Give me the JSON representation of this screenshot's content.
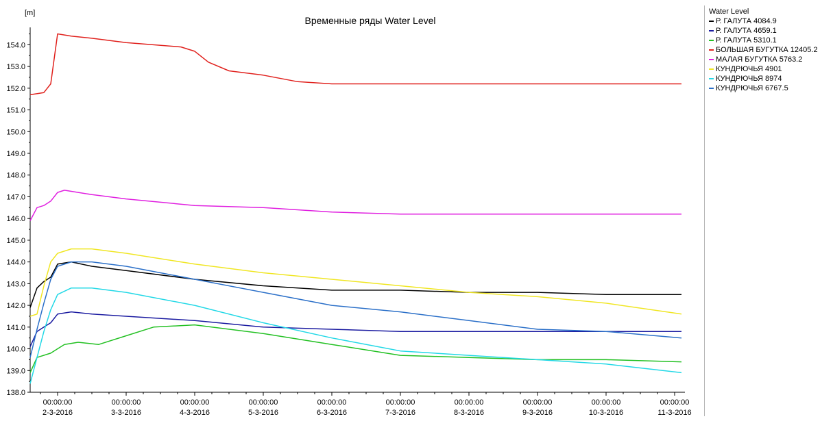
{
  "chart_data": {
    "type": "line",
    "title": "Временные ряды Water Level",
    "ylabel": "[m]",
    "xlabel": "",
    "ylim": [
      138.0,
      154.8
    ],
    "yticks": [
      138.0,
      139.0,
      140.0,
      141.0,
      142.0,
      143.0,
      144.0,
      145.0,
      146.0,
      147.0,
      148.0,
      149.0,
      150.0,
      151.0,
      152.0,
      153.0,
      154.0
    ],
    "xlim": [
      0.6,
      10.15
    ],
    "x_units": "days (1 = 00:00:00 2-3-2016)",
    "xticks": [
      {
        "x": 1,
        "time": "00:00:00",
        "date": "2-3-2016"
      },
      {
        "x": 2,
        "time": "00:00:00",
        "date": "3-3-2016"
      },
      {
        "x": 3,
        "time": "00:00:00",
        "date": "4-3-2016"
      },
      {
        "x": 4,
        "time": "00:00:00",
        "date": "5-3-2016"
      },
      {
        "x": 5,
        "time": "00:00:00",
        "date": "6-3-2016"
      },
      {
        "x": 6,
        "time": "00:00:00",
        "date": "7-3-2016"
      },
      {
        "x": 7,
        "time": "00:00:00",
        "date": "8-3-2016"
      },
      {
        "x": 8,
        "time": "00:00:00",
        "date": "9-3-2016"
      },
      {
        "x": 9,
        "time": "00:00:00",
        "date": "10-3-2016"
      },
      {
        "x": 10,
        "time": "00:00:00",
        "date": "11-3-2016"
      }
    ],
    "legend_title": "Water Level",
    "legend_position": "right",
    "grid": false,
    "series": [
      {
        "name": "Р. ГАЛУТА 4084.9",
        "color": "#000000",
        "x": [
          0.6,
          0.7,
          0.8,
          0.9,
          1.0,
          1.2,
          1.5,
          2.0,
          3.0,
          4.0,
          5.0,
          6.0,
          7.0,
          8.0,
          9.0,
          10.1
        ],
        "y": [
          141.9,
          142.8,
          143.1,
          143.3,
          143.9,
          144.0,
          143.8,
          143.6,
          143.2,
          142.9,
          142.7,
          142.7,
          142.6,
          142.6,
          142.5,
          142.5
        ]
      },
      {
        "name": "Р. ГАЛУТА 4659.1",
        "color": "#1a1aa0",
        "x": [
          0.6,
          0.7,
          0.8,
          0.9,
          1.0,
          1.2,
          1.5,
          2.0,
          3.0,
          4.0,
          5.0,
          6.0,
          7.0,
          8.0,
          9.0,
          10.1
        ],
        "y": [
          140.1,
          140.8,
          141.0,
          141.2,
          141.6,
          141.7,
          141.6,
          141.5,
          141.3,
          141.0,
          140.9,
          140.8,
          140.8,
          140.8,
          140.8,
          140.8
        ]
      },
      {
        "name": "Р. ГАЛУТА 5310.1",
        "color": "#22c022",
        "x": [
          0.6,
          0.7,
          0.9,
          1.0,
          1.1,
          1.3,
          1.6,
          2.0,
          2.4,
          3.0,
          4.0,
          5.0,
          6.0,
          7.0,
          8.0,
          9.0,
          10.1
        ],
        "y": [
          138.9,
          139.6,
          139.8,
          140.0,
          140.2,
          140.3,
          140.2,
          140.6,
          141.0,
          141.1,
          140.7,
          140.2,
          139.7,
          139.6,
          139.5,
          139.5,
          139.4
        ]
      },
      {
        "name": "БОЛЬШАЯ БУГУТКА 12405.2",
        "color": "#e0201c",
        "x": [
          0.6,
          0.8,
          0.9,
          1.0,
          1.2,
          1.5,
          2.0,
          2.8,
          3.0,
          3.2,
          3.5,
          4.0,
          4.5,
          5.0,
          6.0,
          7.0,
          8.0,
          9.0,
          10.1
        ],
        "y": [
          151.7,
          151.8,
          152.2,
          154.5,
          154.4,
          154.3,
          154.1,
          153.9,
          153.7,
          153.2,
          152.8,
          152.6,
          152.3,
          152.2,
          152.2,
          152.2,
          152.2,
          152.2,
          152.2
        ]
      },
      {
        "name": "МАЛАЯ БУГУТКА 5763.2",
        "color": "#e020e0",
        "x": [
          0.6,
          0.7,
          0.8,
          0.9,
          1.0,
          1.1,
          1.5,
          2.0,
          3.0,
          4.0,
          5.0,
          6.0,
          7.0,
          8.0,
          9.0,
          10.1
        ],
        "y": [
          145.9,
          146.5,
          146.6,
          146.8,
          147.2,
          147.3,
          147.1,
          146.9,
          146.6,
          146.5,
          146.3,
          146.2,
          146.2,
          146.2,
          146.2,
          146.2
        ]
      },
      {
        "name": "КУНДРЮЧЬЯ 4901",
        "color": "#f0e622",
        "x": [
          0.6,
          0.7,
          0.8,
          0.9,
          1.0,
          1.2,
          1.5,
          2.0,
          3.0,
          4.0,
          5.0,
          6.0,
          7.0,
          8.0,
          9.0,
          10.1
        ],
        "y": [
          141.5,
          141.6,
          142.9,
          144.0,
          144.4,
          144.6,
          144.6,
          144.4,
          143.9,
          143.5,
          143.2,
          142.9,
          142.6,
          142.4,
          142.1,
          141.6
        ]
      },
      {
        "name": "КУНДРЮЧЬЯ 8974",
        "color": "#22d8e6",
        "x": [
          0.6,
          0.7,
          0.8,
          0.9,
          1.0,
          1.2,
          1.5,
          2.0,
          3.0,
          4.0,
          5.0,
          6.0,
          7.0,
          8.0,
          9.0,
          10.1
        ],
        "y": [
          138.4,
          139.6,
          140.8,
          141.8,
          142.5,
          142.8,
          142.8,
          142.6,
          142.0,
          141.2,
          140.5,
          139.9,
          139.7,
          139.5,
          139.3,
          138.9
        ]
      },
      {
        "name": "КУНДРЮЧЬЯ 6767.5",
        "color": "#2a6fc8",
        "x": [
          0.6,
          0.7,
          0.8,
          0.9,
          1.0,
          1.2,
          1.5,
          2.0,
          3.0,
          4.0,
          5.0,
          6.0,
          7.0,
          8.0,
          9.0,
          10.1
        ],
        "y": [
          139.6,
          140.9,
          142.1,
          143.2,
          143.8,
          144.0,
          144.0,
          143.8,
          143.2,
          142.6,
          142.0,
          141.7,
          141.3,
          140.9,
          140.8,
          140.5
        ]
      }
    ]
  }
}
